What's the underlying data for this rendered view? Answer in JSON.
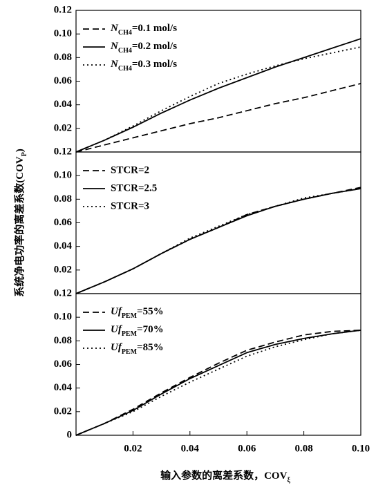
{
  "chart_data": [
    {
      "type": "line",
      "xlim": [
        0,
        0.1
      ],
      "ylim": [
        0,
        0.12
      ],
      "yticks": [
        0.02,
        0.04,
        0.06,
        0.08,
        {
          "value": 0.1,
          "label": "0.10"
        },
        0.12
      ],
      "x": [
        0,
        0.01,
        0.02,
        0.03,
        0.04,
        0.05,
        0.06,
        0.07,
        0.08,
        0.09,
        0.1
      ],
      "series": [
        {
          "name": [
            "N",
            "CH4",
            "=0.1 mol/s"
          ],
          "color": "#000",
          "dash": "dashed",
          "values": [
            0,
            0.006,
            0.012,
            0.018,
            0.024,
            0.029,
            0.035,
            0.041,
            0.046,
            0.052,
            0.058
          ]
        },
        {
          "name": [
            "N",
            "CH4",
            "=0.2 mol/s"
          ],
          "color": "#000",
          "dash": "solid",
          "values": [
            0,
            0.01,
            0.021,
            0.033,
            0.044,
            0.054,
            0.063,
            0.072,
            0.08,
            0.088,
            0.096
          ]
        },
        {
          "name": [
            "N",
            "CH4",
            "=0.3 mol/s"
          ],
          "color": "#000",
          "dash": "dotted",
          "values": [
            0,
            0.01,
            0.022,
            0.035,
            0.047,
            0.058,
            0.066,
            0.073,
            0.079,
            0.084,
            0.089
          ]
        }
      ]
    },
    {
      "type": "line",
      "xlim": [
        0,
        0.1
      ],
      "ylim": [
        0,
        0.12
      ],
      "ylabel": [
        "系统净电功率的离差系数(COV",
        "P",
        ")"
      ],
      "yticks": [
        0.02,
        0.04,
        0.06,
        0.08,
        {
          "value": 0.1,
          "label": "0.10"
        },
        0.12
      ],
      "x": [
        0,
        0.01,
        0.02,
        0.03,
        0.04,
        0.05,
        0.06,
        0.07,
        0.08,
        0.09,
        0.1
      ],
      "series": [
        {
          "name": "STCR=2",
          "color": "#000",
          "dash": "dashed",
          "values": [
            0,
            0.01,
            0.021,
            0.034,
            0.046,
            0.056,
            0.067,
            0.074,
            0.08,
            0.085,
            0.09
          ]
        },
        {
          "name": "STCR=2.5",
          "color": "#000",
          "dash": "solid",
          "values": [
            0,
            0.01,
            0.021,
            0.034,
            0.046,
            0.056,
            0.066,
            0.074,
            0.08,
            0.085,
            0.089
          ]
        },
        {
          "name": "STCR=3",
          "color": "#000",
          "dash": "dotted",
          "values": [
            0,
            0.01,
            0.021,
            0.034,
            0.047,
            0.057,
            0.067,
            0.074,
            0.081,
            0.085,
            0.089
          ]
        }
      ]
    },
    {
      "type": "line",
      "xlim": [
        0,
        0.1
      ],
      "ylim": [
        0,
        0.12
      ],
      "xlabel": [
        "输入参数的离差系数，COV",
        "ξ"
      ],
      "xticks": [
        0.02,
        0.04,
        0.06,
        0.08,
        {
          "value": 0.1,
          "label": "0.10"
        }
      ],
      "yticks": [
        0,
        0.02,
        0.04,
        0.06,
        0.08,
        {
          "value": 0.1,
          "label": "0.10"
        },
        0.12
      ],
      "x": [
        0,
        0.01,
        0.02,
        0.03,
        0.04,
        0.05,
        0.06,
        0.07,
        0.08,
        0.09,
        0.1
      ],
      "series": [
        {
          "name": [
            "Uf",
            "PEM",
            "=55%"
          ],
          "color": "#000",
          "dash": "dashed",
          "values": [
            0,
            0.01,
            0.022,
            0.036,
            0.049,
            0.061,
            0.072,
            0.079,
            0.085,
            0.088,
            0.089
          ]
        },
        {
          "name": [
            "Uf",
            "PEM",
            "=70%"
          ],
          "color": "#000",
          "dash": "solid",
          "values": [
            0,
            0.01,
            0.021,
            0.035,
            0.048,
            0.059,
            0.07,
            0.077,
            0.082,
            0.086,
            0.089
          ]
        },
        {
          "name": [
            "Uf",
            "PEM",
            "=85%"
          ],
          "color": "#000",
          "dash": "dotted",
          "values": [
            0,
            0.01,
            0.02,
            0.033,
            0.045,
            0.056,
            0.067,
            0.075,
            0.081,
            0.086,
            0.089
          ]
        }
      ]
    }
  ]
}
